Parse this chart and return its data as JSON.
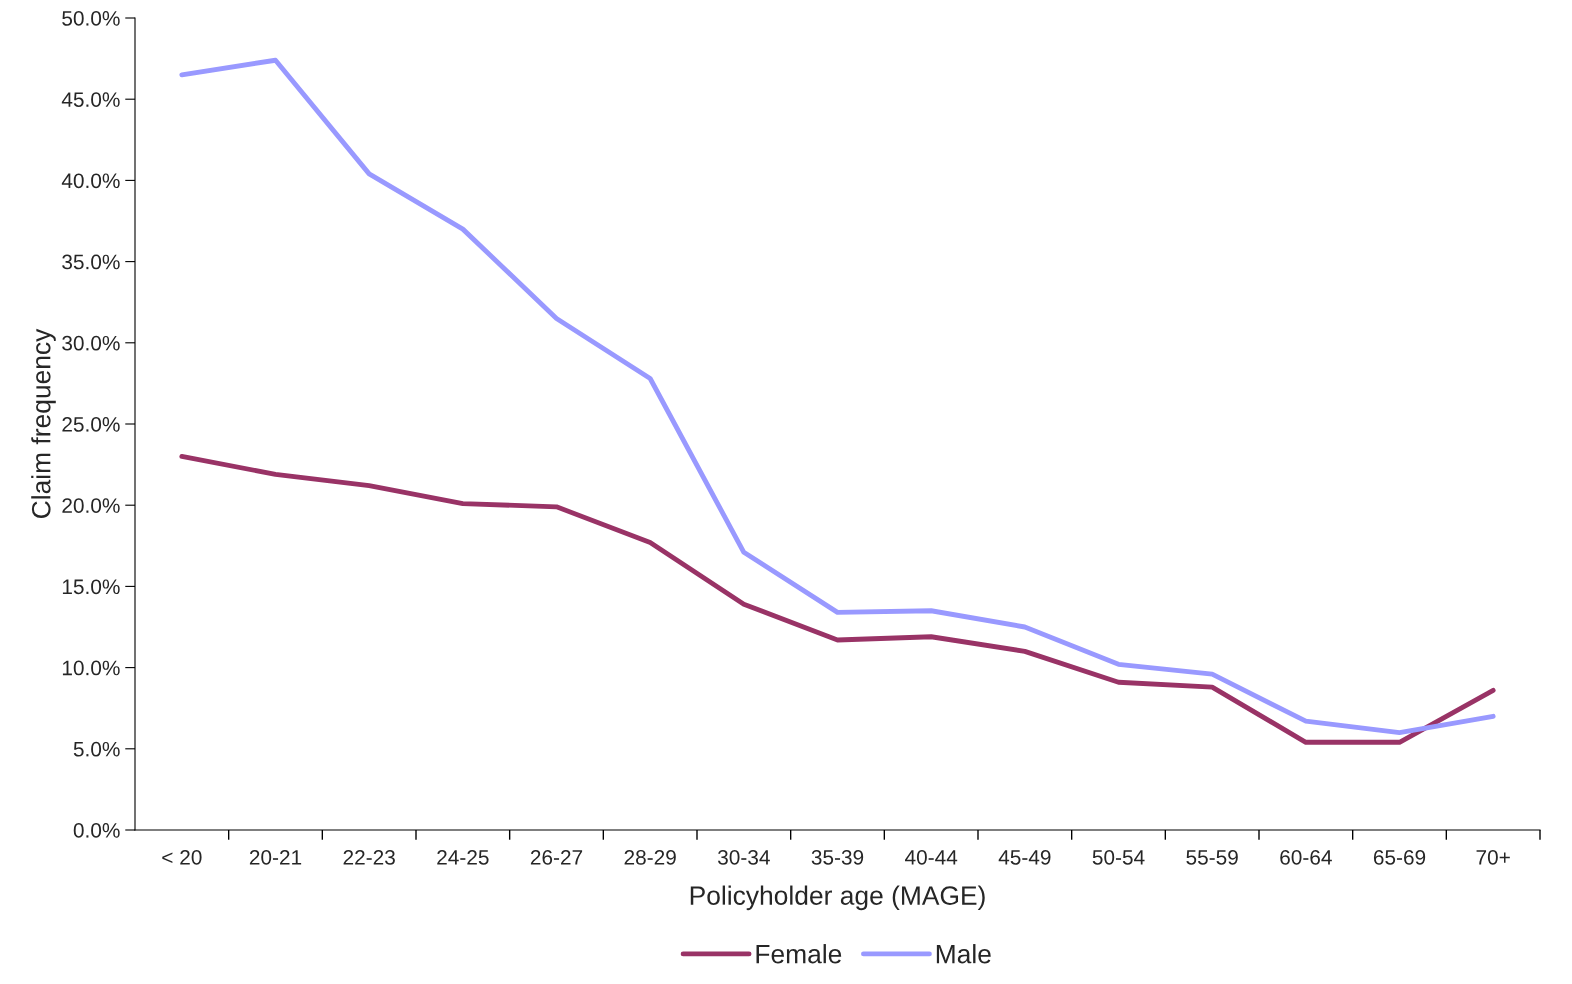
{
  "chart_data": {
    "type": "line",
    "xlabel": "Policyholder age (MAGE)",
    "ylabel": "Claim frequency",
    "categories": [
      "< 20",
      "20-21",
      "22-23",
      "24-25",
      "26-27",
      "28-29",
      "30-34",
      "35-39",
      "40-44",
      "45-49",
      "50-54",
      "55-59",
      "60-64",
      "65-69",
      "70+"
    ],
    "series": [
      {
        "name": "Female",
        "color": "#993366",
        "values": [
          23.0,
          21.9,
          21.2,
          20.1,
          19.9,
          17.7,
          13.9,
          11.7,
          11.9,
          11.0,
          9.1,
          8.8,
          5.4,
          5.4,
          8.6
        ]
      },
      {
        "name": "Male",
        "color": "#9999ff",
        "values": [
          46.5,
          47.4,
          40.4,
          37.0,
          31.5,
          27.8,
          17.1,
          13.4,
          13.5,
          12.5,
          10.2,
          9.6,
          6.7,
          6.0,
          7.0
        ]
      }
    ],
    "ylim": [
      0,
      50
    ],
    "yticks": [
      {
        "value": 0,
        "label": "0.0%"
      },
      {
        "value": 5,
        "label": "5.0%"
      },
      {
        "value": 10,
        "label": "10.0%"
      },
      {
        "value": 15,
        "label": "15.0%"
      },
      {
        "value": 20,
        "label": "20.0%"
      },
      {
        "value": 25,
        "label": "25.0%"
      },
      {
        "value": 30,
        "label": "30.0%"
      },
      {
        "value": 35,
        "label": "35.0%"
      },
      {
        "value": 40,
        "label": "40.0%"
      },
      {
        "value": 45,
        "label": "45.0%"
      },
      {
        "value": 50,
        "label": "50.0%"
      }
    ],
    "grid": false,
    "legend": "bottom",
    "marker": "none",
    "line_style": "solid"
  }
}
